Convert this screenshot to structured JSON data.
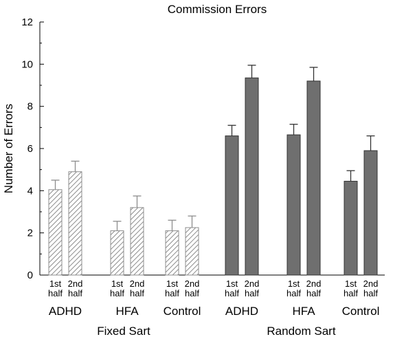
{
  "chart_data": {
    "type": "bar",
    "title": "Commission Errors",
    "ylabel": "Number of Errors",
    "xlabel": "",
    "ylim": [
      0,
      12
    ],
    "yticks": [
      0,
      2,
      4,
      6,
      8,
      10,
      12
    ],
    "grid": false,
    "half_labels": [
      [
        "1st",
        "half"
      ],
      [
        "2nd",
        "half"
      ]
    ],
    "conditions": [
      {
        "name": "Fixed Sart",
        "bar_style": "hatched",
        "groups": [
          {
            "name": "ADHD",
            "values": [
              4.05,
              4.9
            ],
            "errors": [
              0.45,
              0.5
            ]
          },
          {
            "name": "HFA",
            "values": [
              2.1,
              3.2
            ],
            "errors": [
              0.45,
              0.55
            ]
          },
          {
            "name": "Control",
            "values": [
              2.1,
              2.25
            ],
            "errors": [
              0.5,
              0.55
            ]
          }
        ]
      },
      {
        "name": "Random Sart",
        "bar_style": "solid",
        "groups": [
          {
            "name": "ADHD",
            "values": [
              6.6,
              9.35
            ],
            "errors": [
              0.5,
              0.6
            ]
          },
          {
            "name": "HFA",
            "values": [
              6.65,
              9.2
            ],
            "errors": [
              0.5,
              0.65
            ]
          },
          {
            "name": "Control",
            "values": [
              4.45,
              5.9
            ],
            "errors": [
              0.5,
              0.7
            ]
          }
        ]
      }
    ],
    "colors": {
      "hatched_fill": "#ffffff",
      "hatched_stroke": "#8c8c8c",
      "solid_fill": "#6f6f6f",
      "axis": "#000000"
    }
  }
}
